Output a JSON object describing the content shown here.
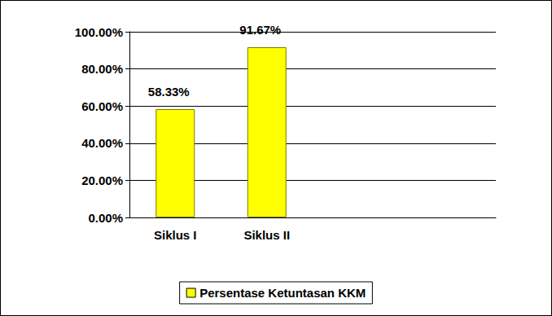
{
  "chart_data": {
    "type": "bar",
    "categories": [
      "Siklus I",
      "Siklus II",
      null,
      null
    ],
    "series": [
      {
        "name": "Persentase Ketuntasan KKM",
        "color": "#ffff00",
        "values": [
          58.33,
          91.67,
          null,
          null
        ],
        "value_labels": [
          "58.33%",
          "91.67%",
          null,
          null
        ]
      }
    ],
    "ylim": [
      0,
      100
    ],
    "yticks": [
      {
        "value": 0,
        "label": "0.00%"
      },
      {
        "value": 20,
        "label": "20.00%"
      },
      {
        "value": 40,
        "label": "40.00%"
      },
      {
        "value": 60,
        "label": "60.00%"
      },
      {
        "value": 80,
        "label": "80.00%"
      },
      {
        "value": 100,
        "label": "100.00%"
      }
    ],
    "grid": true,
    "legend": "bottom",
    "data_labels": true
  }
}
